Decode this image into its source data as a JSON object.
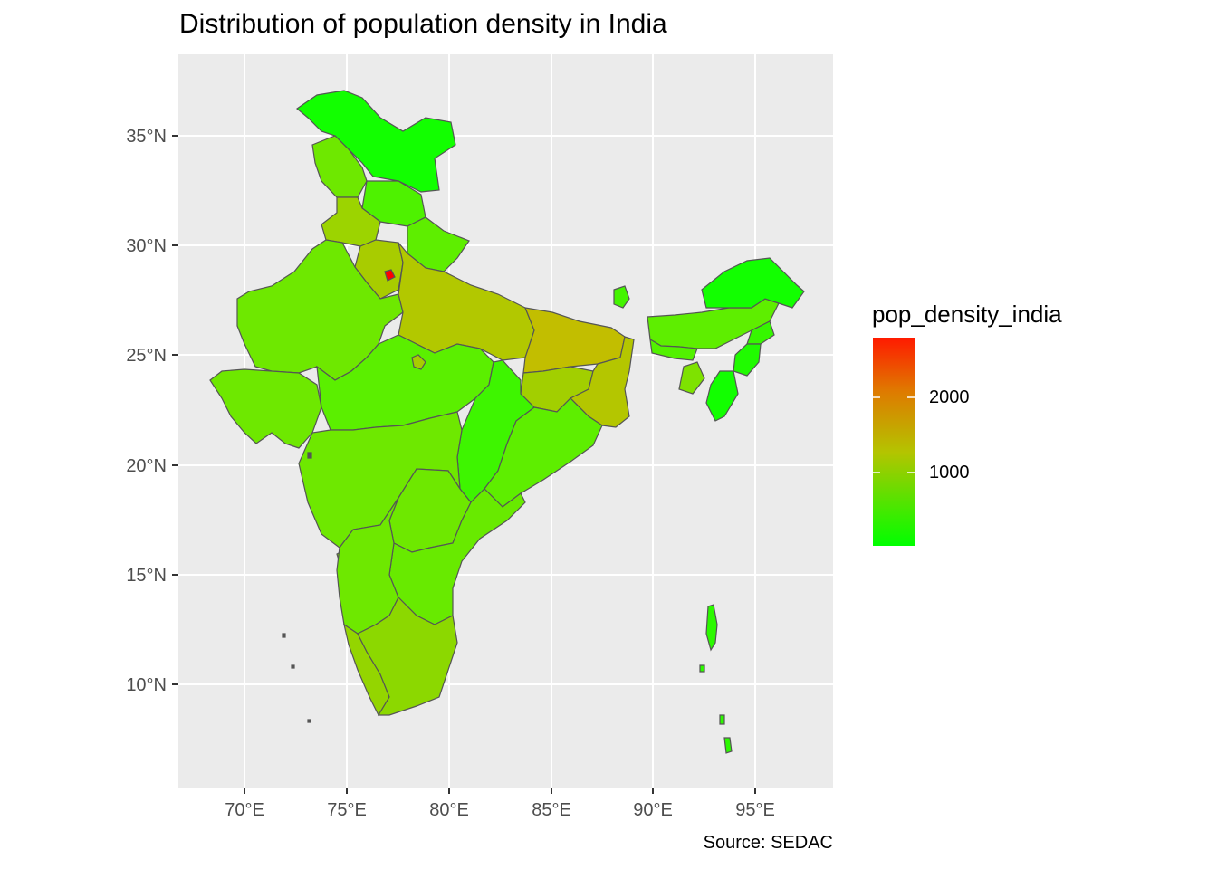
{
  "title": "Distribution of population density in India",
  "caption": "Source: SEDAC",
  "legend": {
    "title": "pop_density_india",
    "labels": [
      "2000",
      "1000"
    ],
    "low_color": "#00ff00",
    "high_color": "#ff0000"
  },
  "axes": {
    "x_ticks": [
      "70°E",
      "75°E",
      "80°E",
      "85°E",
      "90°E",
      "95°E"
    ],
    "y_ticks": [
      "35°N",
      "30°N",
      "25°N",
      "20°N",
      "15°N",
      "10°N"
    ]
  },
  "panel_color": "#ebebeb",
  "border_color": "#555555"
}
